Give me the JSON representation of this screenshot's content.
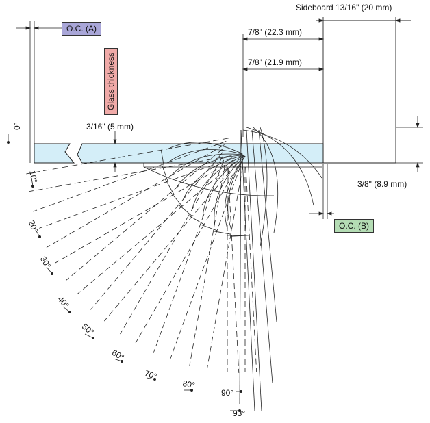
{
  "labels": {
    "sideboard": "Sideboard 13/16\" (20 mm)",
    "dim_top": "7/8\" (22.3 mm)",
    "dim_second": "7/8\" (21.9 mm)",
    "glass_thickness_dim": "3/16\" (5 mm)",
    "right_dim": "3/8\" (8.9 mm)",
    "glass_thickness": "Glass thickness",
    "oc_a": "O.C. (A)",
    "oc_b": "O.C. (B)"
  },
  "colors": {
    "oc_a": "#a9a6d8",
    "oc_b": "#b4dcb4",
    "glass_thickness": "#f0aaa8",
    "glass": "#d4eef8"
  },
  "angles": [
    "0°",
    "10°",
    "20°",
    "30°",
    "40°",
    "50°",
    "60°",
    "70°",
    "80°",
    "90°",
    "93°"
  ]
}
